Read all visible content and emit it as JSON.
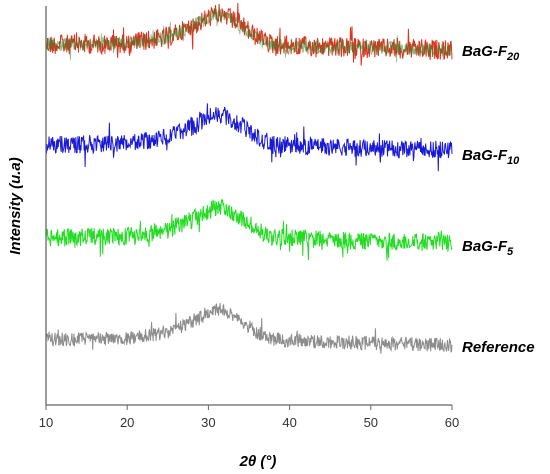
{
  "chart_data": {
    "type": "line",
    "title": "",
    "xlabel": "2θ (°)",
    "ylabel": "Intensity (u.a)",
    "xlim": [
      10,
      60
    ],
    "x_ticks": [
      "10",
      "20",
      "30",
      "40",
      "50",
      "60"
    ],
    "y_ticks_visible": false,
    "grid": false,
    "legend": "series labels at right end of each trace",
    "profile": {
      "description_units": "relative intensity above trace baseline, 0-1",
      "x": [
        10,
        20,
        25,
        28,
        30,
        31,
        32,
        34,
        36,
        38,
        45,
        60
      ],
      "y": [
        0.15,
        0.18,
        0.35,
        0.65,
        0.9,
        1.0,
        0.95,
        0.7,
        0.35,
        0.15,
        0.08,
        0.0
      ]
    },
    "series": [
      {
        "name": "BaG-F",
        "subscript": "20",
        "color": "#e0321e",
        "secondary_color": "#2e8b2e"
      },
      {
        "name": "BaG-F",
        "subscript": "10",
        "color": "#1a1ad6"
      },
      {
        "name": "BaG-F",
        "subscript": "5",
        "color": "#22dd22"
      },
      {
        "name": "Reference",
        "subscript": "",
        "color": "#8c8c8c"
      }
    ]
  }
}
